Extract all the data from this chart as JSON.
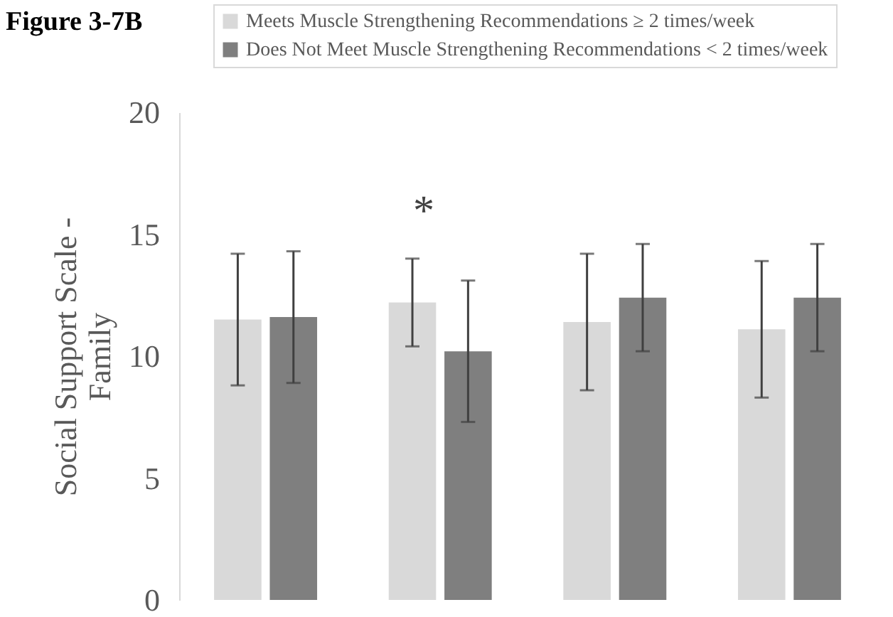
{
  "chart_data": {
    "type": "bar",
    "title": "Figure 3-7B",
    "ylabel": "Social Support Scale - Family",
    "categories": [
      null,
      null,
      null,
      null
    ],
    "series": [
      {
        "name": "Meets Muscle Strengthening Recommendations ≥ 2 times/week",
        "color": "#d9d9d9",
        "values": [
          11.5,
          12.2,
          11.4,
          11.1
        ],
        "errors": [
          2.7,
          1.8,
          2.8,
          2.8
        ]
      },
      {
        "name": "Does Not Meet Muscle Strengthening Recommendations < 2 times/week",
        "color": "#7f7f7f",
        "values": [
          11.6,
          10.2,
          12.4,
          12.4
        ],
        "errors": [
          2.7,
          2.9,
          2.2,
          2.2
        ]
      }
    ],
    "ylim": [
      0,
      20
    ],
    "yticks": [
      0,
      5,
      10,
      15,
      20
    ],
    "grid": false,
    "legend": "top right",
    "tick_labels": "y",
    "annotations": [
      "*"
    ]
  }
}
